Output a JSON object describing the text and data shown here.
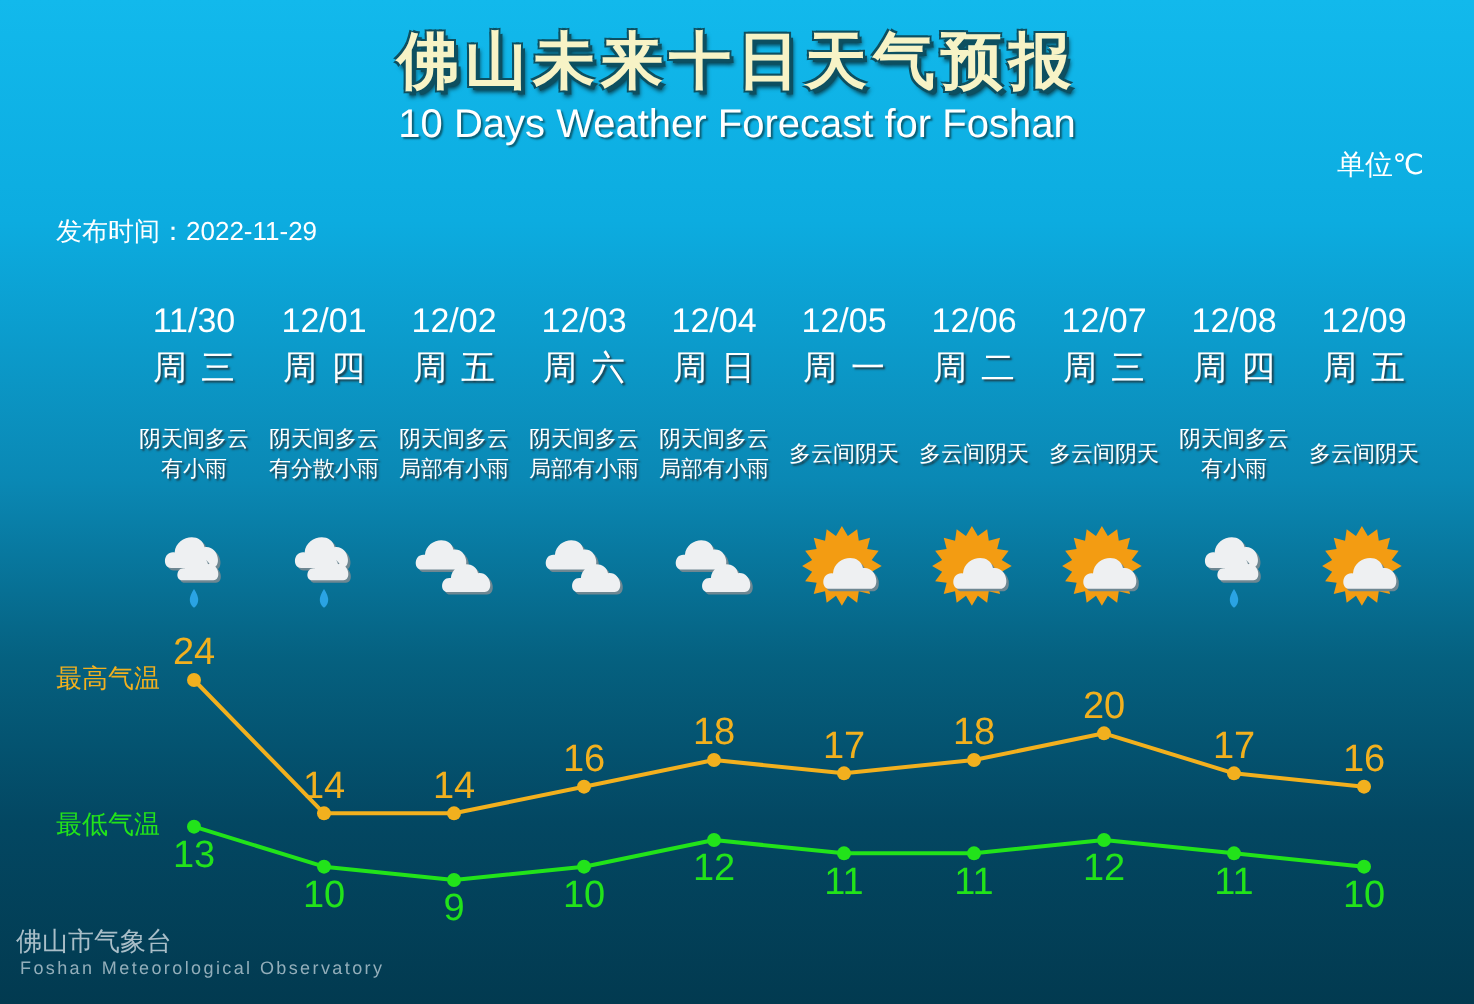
{
  "chart_data": {
    "type": "line",
    "title": "佛山未来十日天气预报",
    "subtitle": "10 Days Weather Forecast for Foshan",
    "categories": [
      "11/30",
      "12/01",
      "12/02",
      "12/03",
      "12/04",
      "12/05",
      "12/06",
      "12/07",
      "12/08",
      "12/09"
    ],
    "series": [
      {
        "name": "最高气温",
        "color": "#f2b01e",
        "values": [
          24,
          14,
          14,
          16,
          18,
          17,
          18,
          20,
          17,
          16
        ]
      },
      {
        "name": "最低气温",
        "color": "#22e31a",
        "values": [
          13,
          10,
          9,
          10,
          12,
          11,
          11,
          12,
          11,
          10
        ]
      }
    ],
    "data_labels": true,
    "marker": "circle",
    "annotations": [
      "单位℃",
      "发布时间：2022-11-29",
      "周三",
      "阴天间多云有小雨",
      "周四",
      "阴天间多云有分散小雨",
      "周五",
      "阴天间多云局部有小雨",
      "周六",
      "阴天间多云局部有小雨",
      "周日",
      "阴天间多云局部有小雨",
      "周一",
      "多云间阴天",
      "周二",
      "多云间阴天",
      "周三",
      "多云间阴天",
      "周四",
      "阴天间多云有小雨",
      "周五",
      "多云间阴天",
      "佛山市气象台",
      "Foshan Meteorological Observatory"
    ]
  }
}
